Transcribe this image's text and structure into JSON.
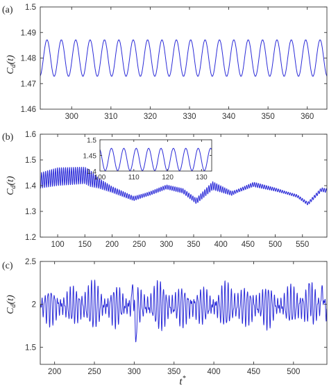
{
  "series_color": "#2b2bd8",
  "xlabel": "t*",
  "chart_data": [
    {
      "panel_label": "(a)",
      "type": "line",
      "ylabel": "C_d(t)",
      "xlim": [
        292,
        365
      ],
      "ylim": [
        1.46,
        1.5
      ],
      "xticks": [
        300,
        310,
        320,
        330,
        340,
        350,
        360
      ],
      "xtick_labels": [
        "300",
        "310",
        "320",
        "330",
        "340",
        "350",
        "360"
      ],
      "yticks": [
        1.46,
        1.47,
        1.48,
        1.49,
        1.5
      ],
      "ytick_labels": [
        "1.46",
        "1.47",
        "1.48",
        "1.49",
        "1.5"
      ],
      "series": [
        {
          "model": "sinusoid",
          "mean": 1.48,
          "amplitude": 0.0072,
          "period": 3.66,
          "x_start": 292,
          "x_end": 365
        }
      ]
    },
    {
      "panel_label": "(b)",
      "type": "line",
      "ylabel": "C_d(t)",
      "xlim": [
        68,
        595
      ],
      "ylim": [
        1.2,
        1.6
      ],
      "xticks": [
        100,
        150,
        200,
        250,
        300,
        350,
        400,
        450,
        500,
        550
      ],
      "xtick_labels": [
        "100",
        "150",
        "200",
        "250",
        "300",
        "350",
        "400",
        "450",
        "500",
        "550"
      ],
      "yticks": [
        1.2,
        1.3,
        1.4,
        1.5,
        1.6
      ],
      "ytick_labels": [
        "1.2",
        "1.3",
        "1.4",
        "1.5",
        "1.6"
      ],
      "series": [
        {
          "model": "modulated-oscillation",
          "period": 3.66,
          "x_start": 68,
          "x_end": 595,
          "mean_envelope": [
            [
              68,
              1.42
            ],
            [
              100,
              1.435
            ],
            [
              150,
              1.44
            ],
            [
              175,
              1.41
            ],
            [
              200,
              1.385
            ],
            [
              240,
              1.35
            ],
            [
              270,
              1.37
            ],
            [
              300,
              1.395
            ],
            [
              330,
              1.38
            ],
            [
              355,
              1.34
            ],
            [
              385,
              1.4
            ],
            [
              420,
              1.37
            ],
            [
              460,
              1.405
            ],
            [
              500,
              1.385
            ],
            [
              540,
              1.36
            ],
            [
              560,
              1.33
            ],
            [
              585,
              1.385
            ],
            [
              595,
              1.38
            ]
          ],
          "amplitude_envelope": [
            [
              68,
              0.03
            ],
            [
              100,
              0.035
            ],
            [
              160,
              0.032
            ],
            [
              175,
              0.02
            ],
            [
              200,
              0.012
            ],
            [
              260,
              0.007
            ],
            [
              350,
              0.01
            ],
            [
              385,
              0.016
            ],
            [
              430,
              0.006
            ],
            [
              465,
              0.009
            ],
            [
              520,
              0.005
            ],
            [
              560,
              0.006
            ],
            [
              595,
              0.008
            ]
          ]
        }
      ],
      "inset": {
        "xlim": [
          100,
          133
        ],
        "ylim": [
          1.4,
          1.5
        ],
        "xticks": [
          100,
          110,
          120,
          130
        ],
        "xtick_labels": [
          "100",
          "110",
          "120",
          "130"
        ],
        "yticks": [
          1.4,
          1.45,
          1.5
        ],
        "ytick_labels": [
          "1.4",
          "1.45",
          "1.5"
        ],
        "series": [
          {
            "model": "sinusoid",
            "mean": 1.437,
            "amplitude": 0.036,
            "period": 3.66,
            "x_start": 100,
            "x_end": 133
          }
        ]
      }
    },
    {
      "panel_label": "(c)",
      "type": "line",
      "ylabel": "C_d(t)",
      "xlim": [
        182,
        542
      ],
      "ylim": [
        1.3,
        2.5
      ],
      "xticks": [
        200,
        250,
        300,
        350,
        400,
        450,
        500
      ],
      "xtick_labels": [
        "200",
        "250",
        "300",
        "350",
        "400",
        "450",
        "500"
      ],
      "yticks": [
        1.5,
        2.0,
        2.5
      ],
      "ytick_labels": [
        "1.5",
        "2",
        "2.5"
      ],
      "series": [
        {
          "model": "irregular-oscillation",
          "mean": 1.98,
          "base_amplitude": 0.2,
          "max_amplitude": 0.44,
          "period": 3.9,
          "x_start": 182,
          "x_end": 542,
          "notable_extrema": [
            [
              298,
              2.23
            ],
            [
              302,
              1.56
            ],
            [
              520,
              2.24
            ],
            [
              536,
              2.22
            ]
          ]
        }
      ]
    }
  ]
}
